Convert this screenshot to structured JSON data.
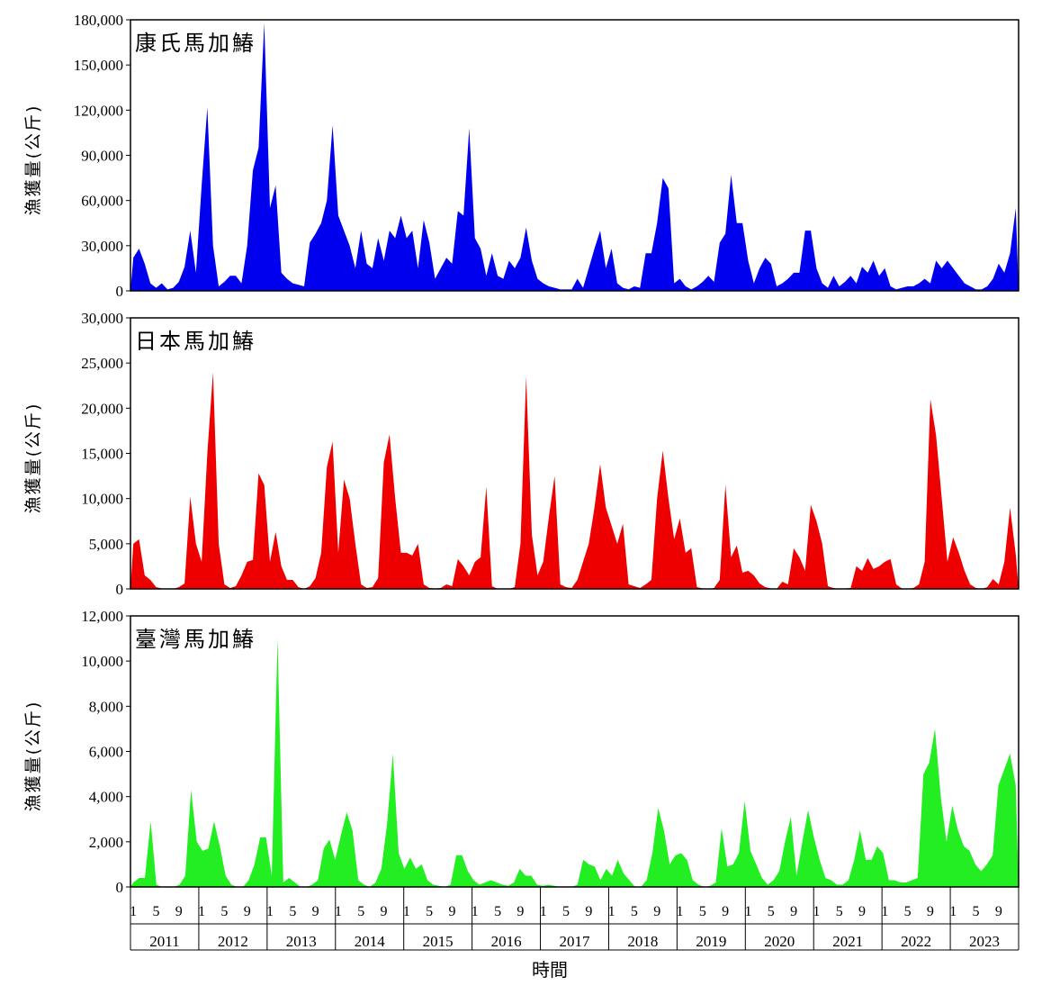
{
  "chart_data": [
    {
      "type": "area",
      "title": "康氏馬加鰆",
      "ylabel": "漁獲量(公斤)",
      "ylim": [
        0,
        180000
      ],
      "yticks": [
        "0",
        "30,000",
        "60,000",
        "90,000",
        "120,000",
        "150,000",
        "180,000"
      ],
      "yticks_values": [
        0,
        30000,
        60000,
        90000,
        120000,
        150000,
        180000
      ],
      "color": "#0000ee",
      "series": [
        {
          "name": "康氏馬加鰆",
          "values": [
            22000,
            28000,
            18000,
            5000,
            2000,
            5000,
            1000,
            2000,
            6000,
            16000,
            40000,
            12000,
            70000,
            122000,
            30000,
            3000,
            6000,
            10000,
            10000,
            5000,
            30000,
            80000,
            95000,
            178000,
            55000,
            70000,
            12000,
            8000,
            5000,
            4000,
            3000,
            32000,
            38000,
            45000,
            60000,
            110000,
            50000,
            40000,
            30000,
            15000,
            40000,
            18000,
            15000,
            35000,
            20000,
            40000,
            35000,
            50000,
            35000,
            40000,
            15000,
            47000,
            32000,
            8000,
            15000,
            22000,
            18000,
            53000,
            50000,
            108000,
            35000,
            28000,
            10000,
            25000,
            10000,
            8000,
            20000,
            15000,
            22000,
            42000,
            20000,
            8000,
            5000,
            3000,
            2000,
            1000,
            1000,
            1000,
            8000,
            2000,
            15000,
            28000,
            40000,
            15000,
            28000,
            5000,
            2000,
            1000,
            3000,
            2000,
            25000,
            25000,
            45000,
            75000,
            68000,
            5000,
            8000,
            3000,
            1000,
            3000,
            6000,
            10000,
            6000,
            32000,
            38000,
            77000,
            45000,
            45000,
            20000,
            5000,
            15000,
            22000,
            18000,
            3000,
            5000,
            8000,
            12000,
            12000,
            40000,
            40000,
            15000,
            5000,
            2000,
            10000,
            3000,
            6000,
            10000,
            5000,
            16000,
            12000,
            20000,
            10000,
            15000,
            3000,
            1000,
            2000,
            3000,
            3000,
            5000,
            8000,
            5000,
            20000,
            15000,
            20000,
            15000,
            10000,
            5000,
            3000,
            1000,
            1000,
            3000,
            8000,
            18000,
            12000,
            25000,
            55000
          ]
        }
      ]
    },
    {
      "type": "area",
      "title": "日本馬加鰆",
      "ylabel": "漁獲量(公斤)",
      "ylim": [
        0,
        30000
      ],
      "yticks": [
        "0",
        "5,000",
        "10,000",
        "15,000",
        "20,000",
        "25,000",
        "30,000"
      ],
      "yticks_values": [
        0,
        5000,
        10000,
        15000,
        20000,
        25000,
        30000
      ],
      "color": "#ee0000",
      "series": [
        {
          "name": "日本馬加鰆",
          "values": [
            5000,
            5500,
            1500,
            1000,
            200,
            50,
            0,
            0,
            200,
            600,
            10200,
            5000,
            3000,
            15000,
            24000,
            5000,
            500,
            100,
            300,
            1500,
            3000,
            3200,
            12800,
            11500,
            3000,
            6300,
            2500,
            1000,
            1000,
            200,
            0,
            300,
            1200,
            4000,
            13500,
            16300,
            4000,
            12100,
            10000,
            5000,
            500,
            100,
            200,
            1200,
            14000,
            17100,
            10000,
            4000,
            4000,
            3700,
            5000,
            500,
            100,
            50,
            100,
            500,
            300,
            3300,
            2500,
            1500,
            3000,
            3500,
            11300,
            300,
            0,
            0,
            0,
            200,
            5000,
            23500,
            6000,
            1500,
            3000,
            8000,
            12500,
            500,
            200,
            100,
            1000,
            3000,
            5000,
            9000,
            13800,
            9000,
            7000,
            5000,
            7200,
            500,
            300,
            100,
            500,
            1000,
            10000,
            15300,
            10000,
            5500,
            7800,
            4000,
            4500,
            200,
            50,
            0,
            100,
            1000,
            11500,
            3500,
            4800,
            1800,
            2000,
            1500,
            600,
            200,
            50,
            0,
            800,
            500,
            4500,
            3500,
            2000,
            9300,
            7500,
            5000,
            300,
            100,
            0,
            50,
            100,
            2500,
            2000,
            3400,
            2200,
            2500,
            3000,
            3300,
            500,
            50,
            0,
            100,
            500,
            3000,
            21000,
            17000,
            10000,
            3000,
            5700,
            4000,
            2000,
            500,
            100,
            0,
            200,
            1100,
            500,
            3000,
            9000,
            3800
          ]
        }
      ]
    },
    {
      "type": "area",
      "title": "臺灣馬加鰆",
      "ylabel": "漁獲量(公斤)",
      "ylim": [
        0,
        12000
      ],
      "yticks": [
        "0",
        "2,000",
        "4,000",
        "6,000",
        "8,000",
        "10,000",
        "12,000"
      ],
      "yticks_values": [
        0,
        2000,
        4000,
        6000,
        8000,
        10000,
        12000
      ],
      "color": "#22ee22",
      "series": [
        {
          "name": "臺灣馬加鰆",
          "values": [
            200,
            400,
            400,
            2900,
            100,
            0,
            0,
            0,
            100,
            500,
            4300,
            2000,
            1600,
            1700,
            2900,
            1800,
            500,
            100,
            0,
            0,
            300,
            1000,
            2200,
            2200,
            500,
            11000,
            200,
            400,
            200,
            0,
            0,
            100,
            300,
            1700,
            2100,
            1200,
            2300,
            3300,
            2500,
            300,
            100,
            0,
            200,
            800,
            2800,
            5900,
            1500,
            800,
            1300,
            800,
            1000,
            300,
            100,
            50,
            0,
            100,
            1400,
            1400,
            700,
            300,
            100,
            200,
            300,
            200,
            100,
            50,
            200,
            800,
            500,
            500,
            100,
            50,
            100,
            50,
            0,
            0,
            0,
            100,
            1200,
            1000,
            900,
            300,
            800,
            500,
            1200,
            600,
            300,
            0,
            0,
            300,
            1500,
            3500,
            2500,
            1000,
            1400,
            1500,
            1200,
            300,
            100,
            0,
            50,
            200,
            2600,
            900,
            1000,
            1500,
            3800,
            1600,
            1000,
            400,
            100,
            300,
            700,
            2000,
            3100,
            500,
            2000,
            3400,
            2200,
            1200,
            400,
            300,
            100,
            100,
            300,
            1200,
            2500,
            1200,
            1200,
            1800,
            1500,
            300,
            300,
            200,
            200,
            300,
            400,
            5000,
            5500,
            7000,
            4000,
            2000,
            3600,
            2500,
            1800,
            1600,
            1000,
            700,
            1000,
            1400,
            4500,
            5200,
            5900,
            4500
          ]
        }
      ]
    }
  ],
  "x_axis": {
    "month_labels": [
      "1",
      "5",
      "9"
    ],
    "years": [
      "2011",
      "2012",
      "2013",
      "2014",
      "2015",
      "2016",
      "2017",
      "2018",
      "2019",
      "2020",
      "2021",
      "2022",
      "2023"
    ],
    "title": "時間"
  }
}
